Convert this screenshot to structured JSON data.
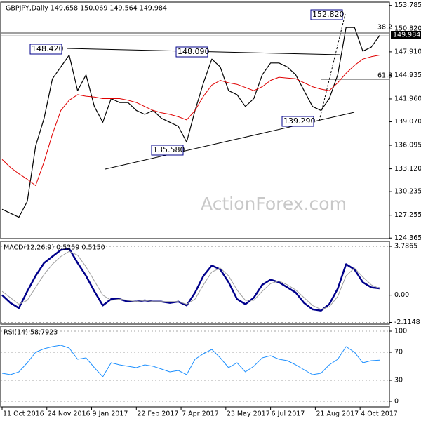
{
  "chart_data": [
    {
      "type": "line",
      "title": "GBPJPY,Daily  149.658 150.069 149.564 149.984",
      "x": [
        0,
        6,
        12,
        18,
        24,
        30,
        36,
        42,
        48,
        54,
        60,
        66,
        72,
        78,
        84,
        90,
        96,
        102,
        108,
        114,
        120,
        126,
        132,
        138,
        144,
        150,
        156,
        162,
        168,
        174,
        180,
        186,
        192,
        198,
        204,
        210,
        216,
        222,
        228,
        234,
        240,
        246,
        252,
        258,
        264,
        270
      ],
      "series": [
        {
          "color": "#000000",
          "values": [
            128,
            127.5,
            127,
            129,
            136,
            139.5,
            144.5,
            146,
            147.5,
            143,
            145,
            141,
            139,
            142,
            141.5,
            141.5,
            140.5,
            140,
            140.5,
            139.5,
            139,
            138.5,
            136.5,
            140.5,
            144,
            147,
            146,
            143,
            142.5,
            141,
            142,
            145,
            146.5,
            146.5,
            146,
            145,
            143,
            141,
            140.5,
            142,
            145,
            151,
            151,
            148,
            148.5,
            149.984
          ]
        },
        {
          "color": "#e00000",
          "values": [
            134.3,
            133.3,
            132.5,
            131.8,
            131,
            134,
            137.5,
            140.5,
            141.8,
            142.5,
            142.3,
            142.2,
            142,
            142,
            142,
            141.8,
            141.5,
            141,
            140.5,
            140.2,
            140,
            139.7,
            139.3,
            140.5,
            142.3,
            143.7,
            144.3,
            144,
            143.8,
            143.4,
            143,
            143.5,
            144.3,
            144.7,
            144.6,
            144.5,
            144,
            143.5,
            143.2,
            143,
            144,
            145.2,
            146.2,
            147,
            147.3,
            147.5
          ]
        }
      ],
      "xlim": [
        -1,
        277
      ],
      "ylim": [
        124.3,
        154.2
      ],
      "yticks": [
        153.785,
        {
          "value": 150.82,
          "label": "150.820"
        },
        {
          "value": 147.91,
          "label": "147.910"
        },
        144.935,
        {
          "value": 141.96,
          "label": "141.960"
        },
        {
          "value": 139.07,
          "label": "139.070"
        },
        136.095,
        {
          "value": 133.12,
          "label": "133.120"
        },
        130.235,
        127.255,
        124.365
      ],
      "grid": false,
      "annotations": [
        "152.820",
        "148.420",
        "148.090",
        "135.580",
        "139.290",
        "38.2",
        "61.8",
        "ActionForex.com"
      ],
      "current_price": "149.984"
    },
    {
      "type": "line",
      "title": "MACD(12,26,9) 0.5259 0.5150",
      "x": [
        0,
        6,
        12,
        18,
        24,
        30,
        36,
        42,
        48,
        54,
        60,
        66,
        72,
        78,
        84,
        90,
        96,
        102,
        108,
        114,
        120,
        126,
        132,
        138,
        144,
        150,
        156,
        162,
        168,
        174,
        180,
        186,
        192,
        198,
        204,
        210,
        216,
        222,
        228,
        234,
        240,
        246,
        252,
        258,
        264,
        270
      ],
      "series": [
        {
          "color": "#00008b",
          "values": [
            0,
            -0.6,
            -1.0,
            0.3,
            1.5,
            2.5,
            3.0,
            3.5,
            3.6,
            2.5,
            1.5,
            0.3,
            -0.8,
            -0.3,
            -0.3,
            -0.5,
            -0.5,
            -0.4,
            -0.5,
            -0.5,
            -0.6,
            -0.5,
            -0.8,
            0.2,
            1.5,
            2.3,
            2.0,
            1.0,
            -0.3,
            -0.7,
            -0.2,
            0.8,
            1.2,
            1.0,
            0.6,
            0.2,
            -0.6,
            -1.1,
            -1.2,
            -0.7,
            0.5,
            2.4,
            2.0,
            1.0,
            0.6,
            0.5259
          ]
        },
        {
          "color": "#a0a0a0",
          "values": [
            0.3,
            -0.2,
            -0.7,
            -0.4,
            0.6,
            1.6,
            2.4,
            3.0,
            3.4,
            3.1,
            2.2,
            1.1,
            0,
            -0.4,
            -0.3,
            -0.4,
            -0.5,
            -0.4,
            -0.5,
            -0.5,
            -0.5,
            -0.5,
            -0.7,
            -0.3,
            0.8,
            1.8,
            2.1,
            1.5,
            0.4,
            -0.4,
            -0.4,
            0.3,
            0.9,
            1.1,
            0.8,
            0.4,
            -0.2,
            -0.8,
            -1.1,
            -0.9,
            -0.1,
            1.5,
            2.1,
            1.4,
            0.8,
            0.515
          ]
        }
      ],
      "xlim": [
        -1,
        277
      ],
      "ylim": [
        -2.25,
        4.17
      ],
      "yticks": [
        3.7865,
        {
          "value": 0,
          "label": "0.00"
        },
        -2.1148
      ],
      "grid": true
    },
    {
      "type": "line",
      "title": "RSI(14) 58.7923",
      "x": [
        0,
        6,
        12,
        18,
        24,
        30,
        36,
        42,
        48,
        54,
        60,
        66,
        72,
        78,
        84,
        90,
        96,
        102,
        108,
        114,
        120,
        126,
        132,
        138,
        144,
        150,
        156,
        162,
        168,
        174,
        180,
        186,
        192,
        198,
        204,
        210,
        216,
        222,
        228,
        234,
        240,
        246,
        252,
        258,
        264,
        270
      ],
      "series": [
        {
          "color": "#1e90ff",
          "values": [
            40,
            38,
            42,
            55,
            70,
            75,
            78,
            80,
            76,
            60,
            62,
            48,
            35,
            55,
            52,
            50,
            48,
            52,
            50,
            46,
            42,
            44,
            38,
            60,
            68,
            74,
            62,
            48,
            55,
            42,
            50,
            62,
            65,
            60,
            58,
            52,
            45,
            38,
            40,
            52,
            60,
            78,
            70,
            55,
            58,
            58.7923
          ]
        }
      ],
      "xlim": [
        -1,
        277
      ],
      "ylim": [
        -8,
        107
      ],
      "yticks": [
        100,
        70,
        30,
        0
      ],
      "grid": true,
      "xticks": [
        {
          "value": 0,
          "label": "11 Oct 2016"
        },
        {
          "value": 32,
          "label": "24 Nov 2016"
        },
        {
          "value": 64,
          "label": "9 Jan 2017"
        },
        {
          "value": 96,
          "label": "22 Feb 2017"
        },
        {
          "value": 128,
          "label": "7 Apr 2017"
        },
        {
          "value": 160,
          "label": "23 May 2017"
        },
        {
          "value": 192,
          "label": "6 Jul 2017"
        },
        {
          "value": 224,
          "label": "21 Aug 2017"
        },
        {
          "value": 256,
          "label": "4 Oct 2017"
        }
      ]
    }
  ]
}
